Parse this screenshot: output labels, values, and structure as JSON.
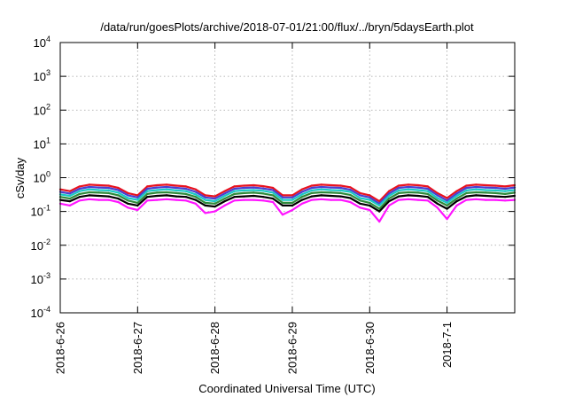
{
  "chart_data": {
    "type": "line",
    "title": "/data/run/goesPlots/archive/2018-07-01/21:00/flux/../bryn/5daysEarth.plot",
    "xlabel": "Coordinated Universal Time (UTC)",
    "ylabel": "cSv/day",
    "xlim": [
      "2018-06-26T00:00",
      "2018-07-01T21:00"
    ],
    "ylim": [
      0.0001,
      10000
    ],
    "yscale": "log",
    "grid": true,
    "legend": "none",
    "x_ticks": [
      "2018-6-26",
      "2018-6-27",
      "2018-6-28",
      "2018-6-29",
      "2018-6-30",
      "2018-7-1"
    ],
    "y_ticks": [
      {
        "base": "10",
        "exp": "-4"
      },
      {
        "base": "10",
        "exp": "-3"
      },
      {
        "base": "10",
        "exp": "-2"
      },
      {
        "base": "10",
        "exp": "-1"
      },
      {
        "base": "10",
        "exp": "0"
      },
      {
        "base": "10",
        "exp": "1"
      },
      {
        "base": "10",
        "exp": "2"
      },
      {
        "base": "10",
        "exp": "3"
      },
      {
        "base": "10",
        "exp": "4"
      }
    ],
    "x_days": [
      "2018-06-26T00:00",
      "2018-06-26T03:00",
      "2018-06-26T06:00",
      "2018-06-26T09:00",
      "2018-06-26T12:00",
      "2018-06-26T15:00",
      "2018-06-26T18:00",
      "2018-06-26T21:00",
      "2018-06-27T00:00",
      "2018-06-27T03:00",
      "2018-06-27T06:00",
      "2018-06-27T09:00",
      "2018-06-27T12:00",
      "2018-06-27T15:00",
      "2018-06-27T18:00",
      "2018-06-27T21:00",
      "2018-06-28T00:00",
      "2018-06-28T03:00",
      "2018-06-28T06:00",
      "2018-06-28T09:00",
      "2018-06-28T12:00",
      "2018-06-28T15:00",
      "2018-06-28T18:00",
      "2018-06-28T21:00",
      "2018-06-29T00:00",
      "2018-06-29T03:00",
      "2018-06-29T06:00",
      "2018-06-29T09:00",
      "2018-06-29T12:00",
      "2018-06-29T15:00",
      "2018-06-29T18:00",
      "2018-06-29T21:00",
      "2018-06-30T00:00",
      "2018-06-30T03:00",
      "2018-06-30T06:00",
      "2018-06-30T09:00",
      "2018-06-30T12:00",
      "2018-06-30T15:00",
      "2018-06-30T18:00",
      "2018-06-30T21:00",
      "2018-07-01T00:00",
      "2018-07-01T03:00",
      "2018-07-01T06:00",
      "2018-07-01T09:00",
      "2018-07-01T12:00",
      "2018-07-01T15:00",
      "2018-07-01T18:00",
      "2018-07-01T21:00"
    ],
    "series": [
      {
        "color": "#e8121f",
        "values": [
          0.45,
          0.4,
          0.55,
          0.62,
          0.6,
          0.58,
          0.5,
          0.35,
          0.3,
          0.55,
          0.6,
          0.62,
          0.58,
          0.55,
          0.45,
          0.3,
          0.28,
          0.4,
          0.55,
          0.58,
          0.6,
          0.56,
          0.5,
          0.3,
          0.3,
          0.45,
          0.58,
          0.62,
          0.6,
          0.58,
          0.52,
          0.35,
          0.3,
          0.2,
          0.4,
          0.58,
          0.62,
          0.6,
          0.55,
          0.35,
          0.25,
          0.4,
          0.58,
          0.62,
          0.6,
          0.58,
          0.55,
          0.6
        ]
      },
      {
        "color": "#4a3fd0",
        "values": [
          0.38,
          0.34,
          0.47,
          0.53,
          0.51,
          0.5,
          0.43,
          0.3,
          0.26,
          0.47,
          0.51,
          0.53,
          0.5,
          0.47,
          0.38,
          0.26,
          0.24,
          0.34,
          0.47,
          0.5,
          0.51,
          0.48,
          0.43,
          0.26,
          0.26,
          0.38,
          0.5,
          0.53,
          0.51,
          0.5,
          0.44,
          0.3,
          0.26,
          0.17,
          0.34,
          0.5,
          0.53,
          0.51,
          0.47,
          0.3,
          0.21,
          0.34,
          0.5,
          0.53,
          0.51,
          0.5,
          0.47,
          0.51
        ]
      },
      {
        "color": "#19c8c4",
        "values": [
          0.32,
          0.29,
          0.4,
          0.45,
          0.43,
          0.42,
          0.36,
          0.25,
          0.22,
          0.4,
          0.43,
          0.45,
          0.42,
          0.4,
          0.32,
          0.22,
          0.2,
          0.29,
          0.4,
          0.42,
          0.43,
          0.41,
          0.36,
          0.22,
          0.22,
          0.32,
          0.42,
          0.45,
          0.43,
          0.42,
          0.38,
          0.25,
          0.22,
          0.15,
          0.29,
          0.42,
          0.45,
          0.43,
          0.4,
          0.25,
          0.18,
          0.29,
          0.42,
          0.45,
          0.43,
          0.42,
          0.4,
          0.43
        ]
      },
      {
        "color": "#2f8a3a",
        "values": [
          0.27,
          0.24,
          0.33,
          0.37,
          0.36,
          0.35,
          0.3,
          0.21,
          0.18,
          0.33,
          0.36,
          0.37,
          0.35,
          0.33,
          0.27,
          0.18,
          0.17,
          0.24,
          0.33,
          0.35,
          0.36,
          0.34,
          0.3,
          0.18,
          0.18,
          0.27,
          0.35,
          0.37,
          0.36,
          0.35,
          0.31,
          0.21,
          0.18,
          0.12,
          0.24,
          0.35,
          0.37,
          0.36,
          0.33,
          0.21,
          0.15,
          0.24,
          0.35,
          0.37,
          0.36,
          0.35,
          0.33,
          0.36
        ]
      },
      {
        "color": "#000000",
        "values": [
          0.22,
          0.2,
          0.27,
          0.3,
          0.29,
          0.28,
          0.24,
          0.17,
          0.15,
          0.27,
          0.29,
          0.3,
          0.28,
          0.27,
          0.22,
          0.15,
          0.14,
          0.2,
          0.27,
          0.28,
          0.29,
          0.27,
          0.24,
          0.15,
          0.15,
          0.22,
          0.28,
          0.3,
          0.29,
          0.28,
          0.25,
          0.17,
          0.15,
          0.1,
          0.2,
          0.28,
          0.3,
          0.29,
          0.27,
          0.17,
          0.12,
          0.2,
          0.28,
          0.3,
          0.29,
          0.28,
          0.27,
          0.29
        ]
      },
      {
        "color": "#ff14ff",
        "values": [
          0.17,
          0.15,
          0.21,
          0.23,
          0.22,
          0.22,
          0.19,
          0.13,
          0.11,
          0.21,
          0.22,
          0.23,
          0.22,
          0.21,
          0.17,
          0.09,
          0.1,
          0.15,
          0.21,
          0.22,
          0.22,
          0.21,
          0.19,
          0.08,
          0.11,
          0.17,
          0.22,
          0.23,
          0.22,
          0.22,
          0.19,
          0.13,
          0.11,
          0.05,
          0.15,
          0.22,
          0.23,
          0.22,
          0.21,
          0.13,
          0.06,
          0.15,
          0.22,
          0.23,
          0.22,
          0.22,
          0.21,
          0.22
        ]
      }
    ]
  }
}
